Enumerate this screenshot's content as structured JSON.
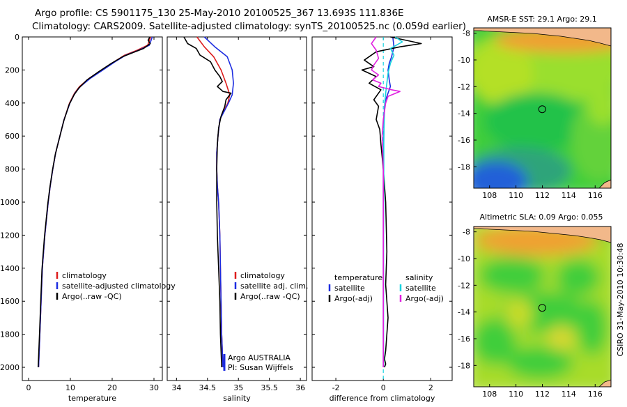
{
  "header": {
    "line1": "Argo profile: CS 5901175_130 25-May-2010 20100525_367 13.693S 111.836E",
    "line2": "Climatology: CARS2009. Satellite-adjusted climatology: synTS_20100525.nc (0.059d earlier)"
  },
  "side_label": "CSIRO 31-May-2010 10:30:48",
  "colors": {
    "climatology": "#dd1c1c",
    "satellite": "#1c2ce0",
    "argo": "#000000",
    "satellite_diff": "#19d3e0",
    "argo_sal_diff": "#e020e0",
    "land": "#f2b88a",
    "marker": "#000000"
  },
  "chart_data": [
    {
      "id": "temperature",
      "type": "line",
      "xlabel": "temperature",
      "ylabel": "",
      "xlim": [
        -1.5,
        32
      ],
      "ylim": [
        2080,
        0
      ],
      "y_inverted": true,
      "xticks": [
        0,
        10,
        20,
        30
      ],
      "yticks": [
        0,
        200,
        400,
        600,
        800,
        1000,
        1200,
        1400,
        1600,
        1800,
        2000
      ],
      "legend_position": "lower-right",
      "legend": [
        "climatology",
        "satellite-adjusted climatology",
        "Argo(..raw -QC)"
      ],
      "series": [
        {
          "name": "climatology",
          "color_key": "climatology",
          "x": [
            29.2,
            28.5,
            26,
            23,
            20.5,
            17.5,
            14.5,
            12.2,
            11,
            9.8,
            8.5,
            7.5,
            6.5,
            5.8,
            5.2,
            4.7,
            4.3,
            3.9,
            3.6,
            3.3,
            3.0,
            2.7,
            2.4
          ],
          "y": [
            0,
            50,
            80,
            110,
            150,
            200,
            250,
            300,
            340,
            400,
            500,
            600,
            700,
            800,
            900,
            1000,
            1100,
            1200,
            1300,
            1400,
            1600,
            1800,
            2000
          ]
        },
        {
          "name": "satellite-adjusted climatology",
          "color_key": "satellite",
          "x": [
            29.6,
            28.9,
            26.4,
            23.3,
            20.7,
            17.8,
            14.8,
            12.4,
            11.1,
            9.9,
            8.5,
            7.5,
            6.5,
            5.8,
            5.2,
            4.7,
            4.3,
            3.9,
            3.6,
            3.3,
            3.0,
            2.7,
            2.4
          ],
          "y": [
            0,
            50,
            80,
            110,
            150,
            200,
            250,
            300,
            340,
            400,
            500,
            600,
            700,
            800,
            900,
            1000,
            1100,
            1200,
            1300,
            1400,
            1600,
            1800,
            2000
          ]
        },
        {
          "name": "Argo(..raw -QC)",
          "color_key": "argo",
          "x": [
            29.0,
            28.6,
            29.1,
            27.5,
            25.5,
            22.5,
            19.8,
            16.8,
            14.0,
            12.0,
            10.9,
            9.7,
            8.4,
            7.4,
            6.4,
            5.7,
            5.1,
            4.6,
            4.2,
            3.8,
            3.5,
            3.2,
            2.9,
            2.6,
            2.3
          ],
          "y": [
            0,
            20,
            40,
            70,
            90,
            120,
            160,
            210,
            260,
            310,
            350,
            410,
            510,
            610,
            710,
            810,
            910,
            1010,
            1110,
            1210,
            1310,
            1410,
            1610,
            1810,
            2000
          ]
        }
      ]
    },
    {
      "id": "salinity",
      "type": "line",
      "xlabel": "salinity",
      "ylabel": "",
      "xlim": [
        33.85,
        36.1
      ],
      "ylim": [
        2080,
        0
      ],
      "y_inverted": true,
      "xticks": [
        34,
        34.5,
        35,
        35.5,
        36
      ],
      "legend_position": "lower-right",
      "legend": [
        "climatology",
        "satellite adj. clim.",
        "Argo(..raw -QC)"
      ],
      "annotations": [
        "Argo AUSTRALIA",
        "PI: Susan Wijffels"
      ],
      "series": [
        {
          "name": "climatology",
          "color_key": "climatology",
          "x": [
            34.33,
            34.45,
            34.6,
            34.72,
            34.8,
            34.86,
            34.83,
            34.76,
            34.7,
            34.67,
            34.65,
            34.65,
            34.66,
            34.68,
            34.7,
            34.71,
            34.72,
            34.73,
            34.74,
            34.75
          ],
          "y": [
            0,
            60,
            120,
            200,
            280,
            350,
            400,
            450,
            500,
            600,
            700,
            800,
            900,
            1000,
            1200,
            1400,
            1600,
            1800,
            1900,
            2000
          ]
        },
        {
          "name": "satellite adj. clim.",
          "color_key": "satellite",
          "x": [
            34.45,
            34.62,
            34.82,
            34.9,
            34.92,
            34.9,
            34.84,
            34.77,
            34.7,
            34.67,
            34.65,
            34.65,
            34.66,
            34.68,
            34.7,
            34.71,
            34.72,
            34.73,
            34.74,
            34.75
          ],
          "y": [
            0,
            60,
            120,
            200,
            280,
            350,
            400,
            450,
            500,
            600,
            700,
            800,
            900,
            1000,
            1200,
            1400,
            1600,
            1800,
            1900,
            2000
          ]
        },
        {
          "name": "Argo(..raw -QC)",
          "color_key": "argo",
          "x": [
            34.12,
            34.18,
            34.32,
            34.38,
            34.55,
            34.62,
            34.7,
            34.74,
            34.66,
            34.75,
            34.88,
            34.8,
            34.78,
            34.72,
            34.68,
            34.66,
            34.65,
            34.65,
            34.66,
            34.68,
            34.7,
            34.71,
            34.72,
            34.73
          ],
          "y": [
            0,
            40,
            70,
            110,
            150,
            200,
            240,
            270,
            300,
            330,
            340,
            380,
            420,
            480,
            550,
            650,
            800,
            1000,
            1200,
            1400,
            1600,
            1800,
            1900,
            2000
          ]
        }
      ]
    },
    {
      "id": "difference",
      "type": "line",
      "xlabel": "difference from climatology",
      "ylabel": "",
      "xlim": [
        -3,
        2.9
      ],
      "ylim": [
        2080,
        0
      ],
      "y_inverted": true,
      "xticks": [
        -2,
        0,
        2
      ],
      "legend_position": "lower-center",
      "legend_groups": [
        {
          "title": "temperature",
          "items": [
            "satellite",
            "Argo(-adj)"
          ]
        },
        {
          "title": "salinity",
          "items": [
            "satellite",
            "Argo(-adj)"
          ]
        }
      ],
      "series": [
        {
          "name": "temperature satellite",
          "color_key": "satellite",
          "x": [
            0.4,
            0.45,
            0.35,
            0.25,
            0.2,
            0.25,
            0.3,
            0.2,
            0.1,
            0.05,
            0.03,
            0.02,
            0.01,
            0,
            0
          ],
          "y": [
            0,
            60,
            120,
            160,
            200,
            260,
            300,
            340,
            380,
            420,
            500,
            600,
            700,
            800,
            2000
          ]
        },
        {
          "name": "temperature Argo(-adj)",
          "color_key": "argo",
          "x": [
            0.3,
            1.6,
            0.7,
            -0.3,
            -0.8,
            -0.4,
            -0.9,
            -0.3,
            -0.6,
            -0.1,
            -0.4,
            -0.2,
            -0.3,
            -0.15,
            -0.1,
            0,
            0.1,
            0.15,
            0.1,
            0.2,
            0.15,
            0.1,
            0.05,
            0.1,
            0.05
          ],
          "y": [
            0,
            40,
            60,
            90,
            140,
            180,
            200,
            240,
            280,
            320,
            380,
            420,
            500,
            560,
            650,
            800,
            1000,
            1300,
            1500,
            1700,
            1800,
            1900,
            1950,
            1980,
            2000
          ]
        },
        {
          "name": "salinity satellite",
          "color_key": "satellite_diff",
          "x": [
            0.5,
            0.8,
            0.3,
            0.45,
            0.3,
            0.2,
            0.15,
            0.1,
            0.06,
            0.04,
            0.02,
            0.02,
            0.01,
            0.01,
            0.01
          ],
          "y": [
            0,
            30,
            70,
            110,
            160,
            220,
            280,
            340,
            400,
            500,
            600,
            800,
            1200,
            1600,
            2000
          ]
        },
        {
          "name": "salinity Argo(-adj)",
          "color_key": "argo_sal_diff",
          "x": [
            -0.3,
            -0.5,
            -0.3,
            -0.2,
            -0.4,
            -0.5,
            -0.2,
            -0.45,
            -0.1,
            -0.2,
            0.35,
            0.7,
            0.2,
            0.1,
            0,
            -0.05,
            0,
            0,
            0,
            0
          ],
          "y": [
            0,
            40,
            80,
            130,
            170,
            200,
            230,
            260,
            280,
            300,
            320,
            330,
            360,
            400,
            500,
            600,
            800,
            1200,
            1600,
            2000
          ]
        }
      ]
    },
    {
      "id": "sst_map",
      "type": "heatmap",
      "title": "AMSR-E SST: 29.1 Argo: 29.1",
      "xlim": [
        106.8,
        117.2
      ],
      "ylim": [
        -19.6,
        -7.6
      ],
      "xticks": [
        108,
        110,
        112,
        114,
        116
      ],
      "yticks": [
        -8,
        -10,
        -12,
        -14,
        -16,
        -18
      ],
      "marker": {
        "lon": 111.836,
        "lat": -13.693
      }
    },
    {
      "id": "sla_map",
      "type": "heatmap",
      "title": "Altimetric SLA: 0.09 Argo: 0.055",
      "xlim": [
        106.8,
        117.2
      ],
      "ylim": [
        -19.6,
        -7.6
      ],
      "xticks": [
        108,
        110,
        112,
        114,
        116
      ],
      "yticks": [
        -8,
        -10,
        -12,
        -14,
        -16,
        -18
      ],
      "marker": {
        "lon": 111.836,
        "lat": -13.693
      }
    }
  ]
}
